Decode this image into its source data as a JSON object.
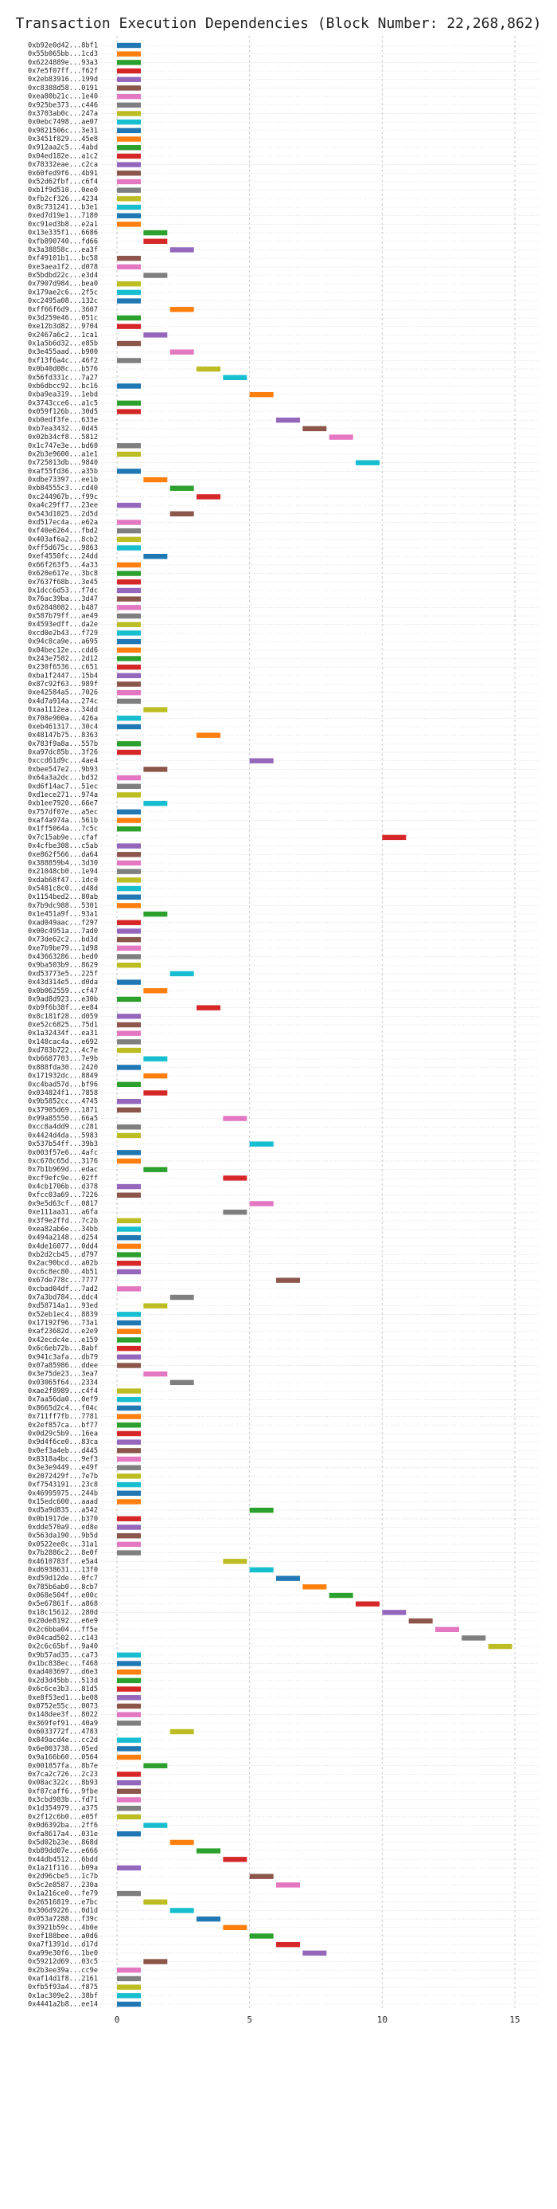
{
  "chart_data": {
    "type": "bar",
    "title": "Transaction Execution Dependencies (Block Number: 22,268,862)",
    "grid": true,
    "xlim": [
      -0.6,
      15.9
    ],
    "xticks": [
      0,
      5,
      10,
      15
    ],
    "colors": [
      "#1f77b4",
      "#ff7f0e",
      "#2ca02c",
      "#d62728",
      "#9467bd",
      "#8c564b",
      "#e377c2",
      "#7f7f7f",
      "#bcbd22",
      "#17becf"
    ],
    "categories": [
      "0xb92e0d42...8bf1",
      "0x55b065bb...1cd3",
      "0x6224889e...93a3",
      "0x7e5f07ff...f62f",
      "0x2eb83916...199d",
      "0xc8388d58...0191",
      "0xea80b21c...1e40",
      "0x925be373...c446",
      "0x3703ab0c...247a",
      "0x0ebc7498...ae07",
      "0x9821506c...3e31",
      "0x3451f829...45e8",
      "0x912aa2c5...4abd",
      "0x04ed182e...a1c2",
      "0x78332eae...c2ca",
      "0x60fed9f6...4b91",
      "0x52d62fbf...c6f4",
      "0xb1f9d510...0ee0",
      "0xfb2cf326...4234",
      "0x8c731241...b3e1",
      "0xed7d19e1...7180",
      "0xc91ed3b8...e2a1",
      "0x13e335f1...6686",
      "0xfb890740...fd66",
      "0x3a38858c...ea3f",
      "0xf49101b1...bc58",
      "0xe3aea1f2...d078",
      "0x5bdbd22c...e3d4",
      "0x7907d984...bea0",
      "0x179ae2c6...2f5c",
      "0xc2495a08...132c",
      "0xff66f6d9...3607",
      "0x3d259e46...051c",
      "0xe12b3d82...9704",
      "0x2467a6c2...1ca1",
      "0x1a5b6d32...e85b",
      "0x3e455aad...b900",
      "0xf13f6a4c...46f2",
      "0x0b40d08c...b576",
      "0x56fd331c...7a27",
      "0xb6dbcc92...bc16",
      "0xba9ea319...1ebd",
      "0x3743cce6...a1c5",
      "0x059f126b...30d5",
      "0xb0edf3fe...633e",
      "0xb7ea3432...0d45",
      "0x02b34cf8...5812",
      "0x1c747e3e...bd60",
      "0x2b3e9600...a1e1",
      "0x725013db...9840",
      "0xaf55fd36...a35b",
      "0xdbe73397...ee1b",
      "0xb84555c3...cd40",
      "0xc244967b...f99c",
      "0xa4c29ff7...23ee",
      "0x543d1025...2d5d",
      "0xd517ec4a...e62a",
      "0xf40e6264...fbd2",
      "0x403af6a2...8cb2",
      "0xff5d675c...9863",
      "0xef4550fc...24dd",
      "0x66f263f5...4a33",
      "0x620e617e...3bc8",
      "0x7637f68b...3e45",
      "0x1dcc6d53...f7dc",
      "0x76ac39ba...3d47",
      "0x62848082...b487",
      "0x587b79ff...ae49",
      "0x4593edff...da2e",
      "0xcd0e2b43...f729",
      "0x94c8ca9e...a695",
      "0x04bec12e...cdd6",
      "0x243e7582...2d12",
      "0x230f6536...c651",
      "0xba1f2447...15b4",
      "0x87c92f63...989f",
      "0xe42584a5...7026",
      "0x4d7a914a...274c",
      "0xaa1112ea...34dd",
      "0x708e900a...426a",
      "0xeb461317...30c4",
      "0x48147b75...8363",
      "0x783f9a8a...557b",
      "0xa97dc85b...3f26",
      "0xccd61d9c...4ae4",
      "0xbee547e2...9b93",
      "0x64a3a2dc...bd32",
      "0xd6f14ac7...51ec",
      "0xd1ece271...974a",
      "0xb1ee7920...66e7",
      "0x757df07e...a5ec",
      "0xaf4a974a...561b",
      "0x1ff5064a...7c5c",
      "0x7c15ab9e...cfaf",
      "0x4cfbe308...c5ab",
      "0xe862f566...da64",
      "0x388859b4...3d30",
      "0x21048cb0...1e94",
      "0xdab68f47...1dc0",
      "0x5481c8c0...d48d",
      "0x1154bed2...80ab",
      "0x7b9dc988...5301",
      "0x1e451a9f...93a1",
      "0xad049aac...f297",
      "0x00c4951a...7ad0",
      "0x73de62c2...bd3d",
      "0xe7b9be79...1d98",
      "0x43663286...bed0",
      "0x9ba503b9...8629",
      "0xd53773e5...225f",
      "0x43d314e5...d0da",
      "0x0b062559...cf47",
      "0x9ad8d923...e30b",
      "0xb9f6b38f...ee84",
      "0x8c181f28...d059",
      "0xe52c6825...75d1",
      "0x1a32434f...ea31",
      "0x148cac4a...e692",
      "0xd783b722...4c7e",
      "0xb6687703...7e9b",
      "0x888fda30...2420",
      "0x171932dc...8849",
      "0xc4bad57d...bf96",
      "0x034824f1...7858",
      "0x9b5852cc...4745",
      "0x37905d69...1871",
      "0x99a85550...66a5",
      "0xcc8a4dd9...c281",
      "0x4424d4da...5983",
      "0x537b54ff...39b3",
      "0x003f57e6...4afc",
      "0xc678c65d...3176",
      "0x7b1b969d...edac",
      "0xcf9efc9e...02ff",
      "0x4cb1706b...d378",
      "0xfcc03a69...7226",
      "0x9e5d63cf...0817",
      "0xe111aa31...a6fa",
      "0x3f9e2ffd...7c2b",
      "0xea82ab6e...34bb",
      "0x494a2148...d254",
      "0x4de16077...0dd4",
      "0xb2d2cb45...d797",
      "0x2ac90bcd...a02b",
      "0xc6c8ec80...4b51",
      "0x67de778c...7777",
      "0xcbad04df...7ad2",
      "0x7a3bd784...ddc4",
      "0xd58714a1...93ed",
      "0x52eb1ec4...8839",
      "0x17192f96...73a1",
      "0xaf23682d...e2e9",
      "0x42ecdc4e...e159",
      "0x6c6eb72b...8abf",
      "0x941c3afa...db79",
      "0x07a85986...ddee",
      "0x3e75de23...3ea7",
      "0x03065f64...2334",
      "0xae2f8989...c4f4",
      "0x7aa56da0...0ef9",
      "0x8665d2c4...f04c",
      "0x711ff7fb...7781",
      "0x2ef857ca...bf77",
      "0x0d29c5b9...16ea",
      "0x9d4f6ce0...83ca",
      "0x0ef3a4eb...d445",
      "0x8318a4bc...9ef3",
      "0x3e3e9449...e49f",
      "0x2072429f...7e7b",
      "0xf7543191...23c8",
      "0x46995975...244b",
      "0x15edc600...aaad",
      "0xd5a9d835...a542",
      "0x0b1917de...b370",
      "0xdde570a9...ed8e",
      "0x563da190...9b5d",
      "0x0522ee8c...31a1",
      "0x7b2886c2...8e0f",
      "0x4610783f...e5a4",
      "0xd6938631...13f0",
      "0xd59d12de...0fc7",
      "0x785b6ab0...8cb7",
      "0x068e504f...e00c",
      "0x5e67861f...a868",
      "0x18c15612...280d",
      "0x20de8192...e6e9",
      "0x2c6bba04...ff5e",
      "0x04cad502...c143",
      "0x2c6c65bf...9a40",
      "0x9b57ad35...ca73",
      "0x1bc838ec...f468",
      "0xad403697...d6e3",
      "0x2d3d45bb...513d",
      "0x6c6ce3b3...81d5",
      "0xe8f53ed1...be08",
      "0x0752e55c...0073",
      "0x148dee3f...8022",
      "0x369fef91...40a9",
      "0x6033772f...4783",
      "0x849acd4e...cc2d",
      "0x6e003738...05ed",
      "0x9a166b60...0564",
      "0x001857fa...8b7e",
      "0x7ca2c726...2c23",
      "0x08ac322c...8b93",
      "0xf87caff6...9fbe",
      "0x3cbd983b...fd71",
      "0x1d354979...a375",
      "0x2f12c6b0...e05f",
      "0x0d6392ba...2ff6",
      "0xfa8617a4...031e",
      "0x5d02b23e...868d",
      "0xb89dd07e...e666",
      "0x44db4512...6bdd",
      "0x1a21f116...b09a",
      "0x2d96cbe5...1c7b",
      "0x5c2e8587...230a",
      "0x1a216ce0...fe79",
      "0x26516819...e7bc",
      "0x306d9226...0d1d",
      "0x053a7288...f39c",
      "0x3921b59c...4b0e",
      "0xef188bee...a0d6",
      "0xa7f1391d...d17d",
      "0xa99e30f6...1be0",
      "0x59212d69...03c5",
      "0x2b3ee39a...cc9e",
      "0xaf14d1f8...2161",
      "0xfb5f93a4...f875",
      "0x1ac309e2...38bf",
      "0x4441a2b8...ee14"
    ],
    "values": [
      0,
      0,
      0,
      0,
      0,
      0,
      0,
      0,
      0,
      0,
      0,
      0,
      0,
      0,
      0,
      0,
      0,
      0,
      0,
      0,
      0,
      0,
      1,
      1,
      2,
      0,
      0,
      1,
      0,
      0,
      0,
      2,
      0,
      0,
      1,
      0,
      2,
      0,
      3,
      4,
      0,
      5,
      0,
      0,
      6,
      7,
      8,
      0,
      0,
      9,
      0,
      1,
      2,
      3,
      0,
      2,
      0,
      0,
      0,
      0,
      1,
      0,
      0,
      0,
      0,
      0,
      0,
      0,
      0,
      0,
      0,
      0,
      0,
      0,
      0,
      0,
      0,
      0,
      1,
      0,
      0,
      3,
      0,
      0,
      5,
      1,
      0,
      0,
      0,
      1,
      0,
      0,
      0,
      10,
      0,
      0,
      0,
      0,
      0,
      0,
      0,
      0,
      1,
      0,
      0,
      0,
      0,
      0,
      0,
      2,
      0,
      1,
      0,
      3,
      0,
      0,
      0,
      0,
      0,
      1,
      0,
      1,
      0,
      1,
      0,
      0,
      4,
      0,
      0,
      5,
      0,
      0,
      1,
      4,
      0,
      0,
      5,
      4,
      0,
      0,
      0,
      0,
      0,
      0,
      0,
      6,
      0,
      2,
      1,
      0,
      0,
      0,
      0,
      0,
      0,
      0,
      1,
      2,
      0,
      0,
      0,
      0,
      0,
      0,
      0,
      0,
      0,
      0,
      0,
      0,
      0,
      0,
      5,
      0,
      0,
      0,
      0,
      0,
      4,
      5,
      6,
      7,
      8,
      9,
      10,
      11,
      12,
      13,
      14,
      0,
      0,
      0,
      0,
      0,
      0,
      0,
      0,
      0,
      2,
      0,
      0,
      0,
      1,
      0,
      0,
      0,
      0,
      0,
      0,
      1,
      0,
      2,
      3,
      4,
      0,
      5,
      6,
      0,
      1,
      2,
      3,
      4,
      5,
      6,
      7,
      1,
      0,
      0,
      0,
      0,
      0
    ]
  }
}
